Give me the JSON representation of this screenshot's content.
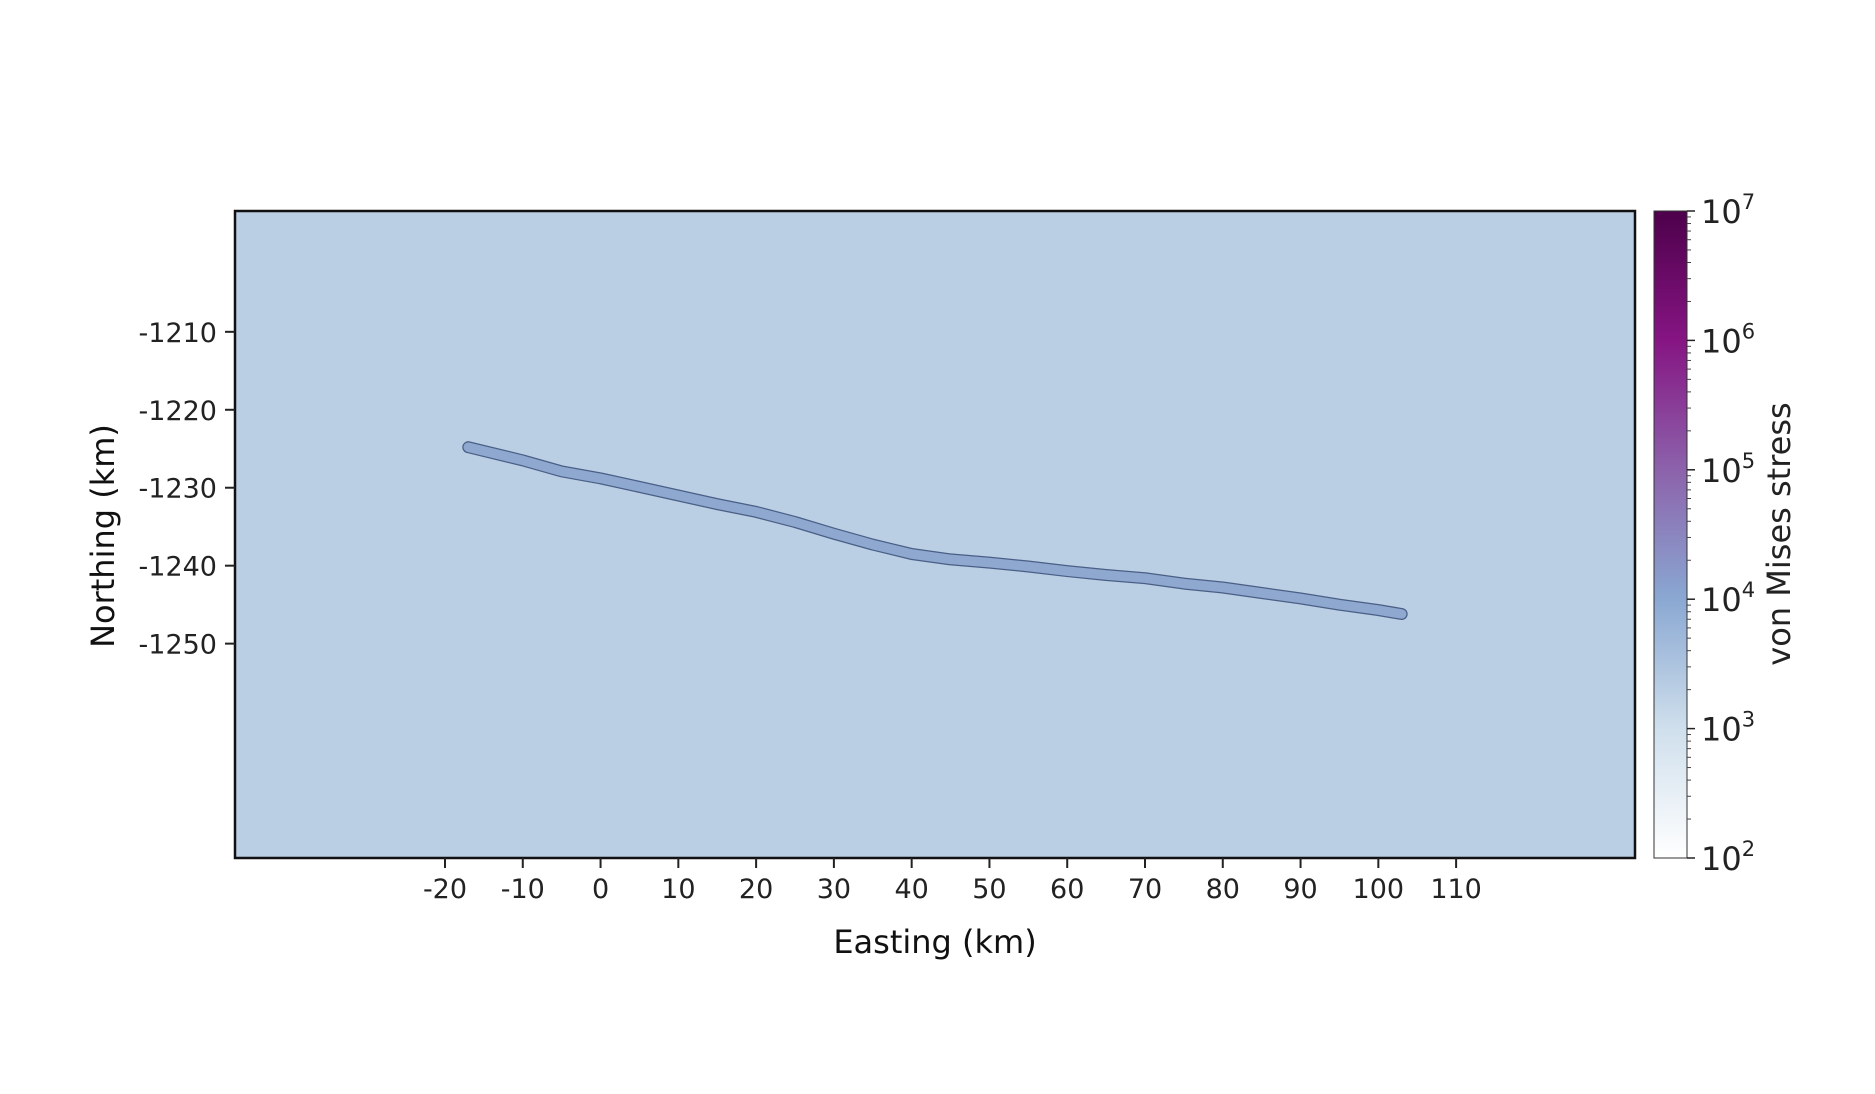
{
  "chart_data": {
    "type": "heatmap",
    "title": "",
    "xlabel": "Easting (km)",
    "ylabel": "Northing (km)",
    "xticks": [
      "-20",
      "-10",
      "0",
      "10",
      "20",
      "30",
      "40",
      "50",
      "60",
      "70",
      "80",
      "90",
      "100",
      "110"
    ],
    "yticks": [
      "-1210",
      "-1220",
      "-1230",
      "-1240",
      "-1250"
    ],
    "xlim": [
      -47,
      133
    ],
    "ylim": [
      -1277.5,
      -1194.5
    ],
    "background_value": 2000,
    "colorbar": {
      "label": "von Mises stress",
      "scale": "log",
      "range": [
        100,
        10000000
      ],
      "ticks": [
        {
          "base": "10",
          "exp": "2"
        },
        {
          "base": "10",
          "exp": "3"
        },
        {
          "base": "10",
          "exp": "4"
        },
        {
          "base": "10",
          "exp": "5"
        },
        {
          "base": "10",
          "exp": "6"
        },
        {
          "base": "10",
          "exp": "7"
        }
      ],
      "colors": [
        "#ffffff",
        "#cfdfec",
        "#8aa8d2",
        "#8c62ab",
        "#861583",
        "#4d004b"
      ]
    },
    "fault_trace": {
      "value": 15000,
      "color": "#8fa8cf",
      "outline": "#4a5f86",
      "points": [
        [
          -17,
          -1224.8
        ],
        [
          -10,
          -1226.5
        ],
        [
          -5,
          -1227.9
        ],
        [
          0,
          -1228.8
        ],
        [
          5,
          -1229.9
        ],
        [
          10,
          -1231.0
        ],
        [
          15,
          -1232.1
        ],
        [
          20,
          -1233.1
        ],
        [
          25,
          -1234.4
        ],
        [
          30,
          -1235.9
        ],
        [
          35,
          -1237.3
        ],
        [
          40,
          -1238.5
        ],
        [
          45,
          -1239.2
        ],
        [
          50,
          -1239.6
        ],
        [
          55,
          -1240.1
        ],
        [
          60,
          -1240.7
        ],
        [
          65,
          -1241.2
        ],
        [
          70,
          -1241.6
        ],
        [
          75,
          -1242.3
        ],
        [
          80,
          -1242.8
        ],
        [
          85,
          -1243.5
        ],
        [
          90,
          -1244.2
        ],
        [
          95,
          -1245.0
        ],
        [
          100,
          -1245.7
        ],
        [
          103,
          -1246.2
        ]
      ]
    }
  }
}
